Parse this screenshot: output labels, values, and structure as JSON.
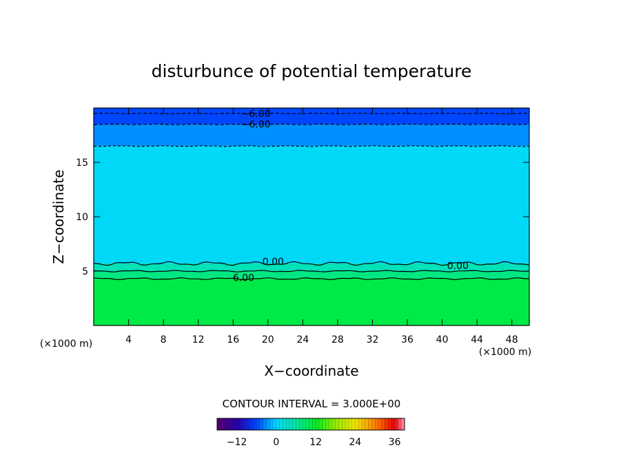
{
  "chart_data": {
    "type": "heatmap",
    "title": "disturbunce of potential temperature",
    "xlabel": "X−coordinate",
    "ylabel": "Z−coordinate",
    "x_unit": "(×1000 m)",
    "y_unit": "(×1000 m)",
    "xlim": [
      0,
      50
    ],
    "ylim": [
      0,
      20
    ],
    "xticks": [
      4,
      8,
      12,
      16,
      20,
      24,
      28,
      32,
      36,
      40,
      44,
      48
    ],
    "yticks": [
      5,
      10,
      15
    ],
    "contour_interval_text": "CONTOUR INTERVAL = 3.000E+00",
    "colorbar": {
      "range": [
        -18,
        39
      ],
      "ticks": [
        -12,
        0,
        12,
        24,
        36
      ],
      "tick_labels": [
        "−12",
        "0",
        "12",
        "24",
        "36"
      ]
    },
    "contour_labels": [
      {
        "text": "−6.00",
        "x": 18.6,
        "y": 19.5
      },
      {
        "text": "−6.00",
        "x": 18.6,
        "y": 18.5
      },
      {
        "text": "0.00",
        "x": 20.6,
        "y": 5.9
      },
      {
        "text": "0.00",
        "x": 41.8,
        "y": 5.5
      },
      {
        "text": "6.00",
        "x": 17.2,
        "y": 4.4
      }
    ],
    "bands": [
      {
        "z0": 0,
        "z1": 4.3,
        "value": 10.5
      },
      {
        "z0": 4.3,
        "z1": 5.0,
        "value": 7.5
      },
      {
        "z0": 5.0,
        "z1": 5.7,
        "value": 4.5
      },
      {
        "z0": 5.7,
        "z1": 16.5,
        "value": 0.5
      },
      {
        "z0": 16.5,
        "z1": 18.5,
        "value": -3
      },
      {
        "z0": 18.5,
        "z1": 20,
        "value": -6
      }
    ]
  }
}
